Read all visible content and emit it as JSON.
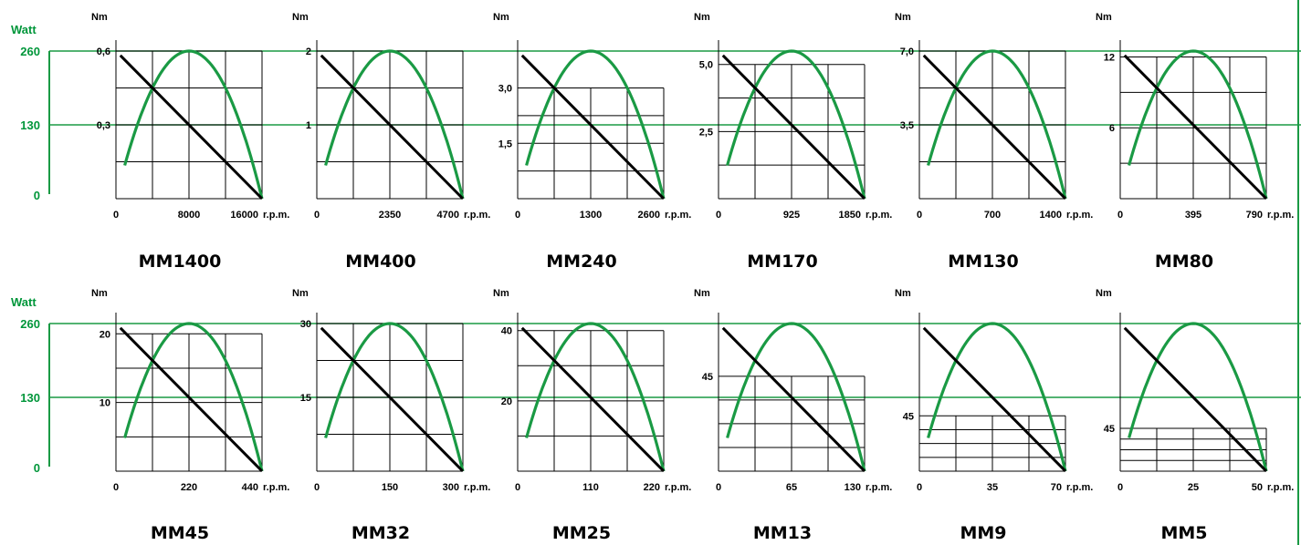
{
  "colors": {
    "power": "#1a9a44",
    "guide": "#1a9a44",
    "torque": "#000000",
    "grid": "#000000"
  },
  "power_axis": {
    "label": "Watt",
    "ticks": [
      "260",
      "130",
      "0"
    ],
    "values": [
      260,
      130,
      0
    ]
  },
  "rpm_unit": "r.p.m.",
  "torque_unit": "Nm",
  "chart_data": [
    {
      "type": "line",
      "model": "MM1400",
      "x_ticks": [
        "0",
        "8000",
        "16000"
      ],
      "x_max": 16000,
      "y_ticks": [
        "0,3",
        "0,6"
      ],
      "y_tick_values": [
        0.3,
        0.6
      ],
      "y_grid_max": 0.6,
      "y_max": 0.6,
      "power_max": 260,
      "series": [
        {
          "name": "Nm",
          "x": [
            0,
            16000
          ],
          "y": [
            0.6,
            0
          ]
        },
        {
          "name": "Watt",
          "x": [
            0,
            8000,
            16000
          ],
          "y": [
            0,
            260,
            0
          ]
        }
      ]
    },
    {
      "type": "line",
      "model": "MM400",
      "x_ticks": [
        "0",
        "2350",
        "4700"
      ],
      "x_max": 4700,
      "y_ticks": [
        "1",
        "2"
      ],
      "y_tick_values": [
        1,
        2
      ],
      "y_grid_max": 2,
      "y_max": 2,
      "power_max": 260,
      "series": [
        {
          "name": "Nm",
          "x": [
            0,
            4700
          ],
          "y": [
            2,
            0
          ]
        },
        {
          "name": "Watt",
          "x": [
            0,
            2350,
            4700
          ],
          "y": [
            0,
            260,
            0
          ]
        }
      ]
    },
    {
      "type": "line",
      "model": "MM240",
      "x_ticks": [
        "0",
        "1300",
        "2600"
      ],
      "x_max": 2600,
      "y_ticks": [
        "1,5",
        "3,0"
      ],
      "y_tick_values": [
        1.5,
        3.0
      ],
      "y_grid_max": 3.0,
      "y_max": 4.0,
      "power_max": 260,
      "series": [
        {
          "name": "Nm",
          "x": [
            0,
            2600
          ],
          "y": [
            4.0,
            0
          ]
        },
        {
          "name": "Watt",
          "x": [
            0,
            1300,
            2600
          ],
          "y": [
            0,
            260,
            0
          ]
        }
      ]
    },
    {
      "type": "line",
      "model": "MM170",
      "x_ticks": [
        "0",
        "925",
        "1850"
      ],
      "x_max": 1850,
      "y_ticks": [
        "2,5",
        "5,0"
      ],
      "y_tick_values": [
        2.5,
        5.0
      ],
      "y_grid_max": 5.0,
      "y_max": 5.5,
      "power_max": 260,
      "series": [
        {
          "name": "Nm",
          "x": [
            0,
            1850
          ],
          "y": [
            5.5,
            0
          ]
        },
        {
          "name": "Watt",
          "x": [
            0,
            925,
            1850
          ],
          "y": [
            0,
            260,
            0
          ]
        }
      ]
    },
    {
      "type": "line",
      "model": "MM130",
      "x_ticks": [
        "0",
        "700",
        "1400"
      ],
      "x_max": 1400,
      "y_ticks": [
        "3,5",
        "7,0"
      ],
      "y_tick_values": [
        3.5,
        7.0
      ],
      "y_grid_max": 7.0,
      "y_max": 7.0,
      "power_max": 260,
      "series": [
        {
          "name": "Nm",
          "x": [
            0,
            1400
          ],
          "y": [
            7.0,
            0
          ]
        },
        {
          "name": "Watt",
          "x": [
            0,
            700,
            1400
          ],
          "y": [
            0,
            260,
            0
          ]
        }
      ]
    },
    {
      "type": "line",
      "model": "MM80",
      "x_ticks": [
        "0",
        "395",
        "790"
      ],
      "x_max": 790,
      "y_ticks": [
        "6",
        "12"
      ],
      "y_tick_values": [
        6,
        12
      ],
      "y_grid_max": 12,
      "y_max": 12.5,
      "power_max": 260,
      "series": [
        {
          "name": "Nm",
          "x": [
            0,
            790
          ],
          "y": [
            12.5,
            0
          ]
        },
        {
          "name": "Watt",
          "x": [
            0,
            395,
            790
          ],
          "y": [
            0,
            260,
            0
          ]
        }
      ]
    },
    {
      "type": "line",
      "model": "MM45",
      "x_ticks": [
        "0",
        "220",
        "440"
      ],
      "x_max": 440,
      "y_ticks": [
        "10",
        "20"
      ],
      "y_tick_values": [
        10,
        20
      ],
      "y_grid_max": 20,
      "y_max": 21.5,
      "power_max": 260,
      "series": [
        {
          "name": "Nm",
          "x": [
            0,
            440
          ],
          "y": [
            21.5,
            0
          ]
        },
        {
          "name": "Watt",
          "x": [
            0,
            220,
            440
          ],
          "y": [
            0,
            260,
            0
          ]
        }
      ]
    },
    {
      "type": "line",
      "model": "MM32",
      "x_ticks": [
        "0",
        "150",
        "300"
      ],
      "x_max": 300,
      "y_ticks": [
        "15",
        "30"
      ],
      "y_tick_values": [
        15,
        30
      ],
      "y_grid_max": 30,
      "y_max": 30,
      "power_max": 260,
      "series": [
        {
          "name": "Nm",
          "x": [
            0,
            300
          ],
          "y": [
            30,
            0
          ]
        },
        {
          "name": "Watt",
          "x": [
            0,
            150,
            300
          ],
          "y": [
            0,
            260,
            0
          ]
        }
      ]
    },
    {
      "type": "line",
      "model": "MM25",
      "x_ticks": [
        "0",
        "110",
        "220"
      ],
      "x_max": 220,
      "y_ticks": [
        "20",
        "40"
      ],
      "y_tick_values": [
        20,
        40
      ],
      "y_grid_max": 40,
      "y_max": 42,
      "power_max": 260,
      "series": [
        {
          "name": "Nm",
          "x": [
            0,
            220
          ],
          "y": [
            42,
            0
          ]
        },
        {
          "name": "Watt",
          "x": [
            0,
            110,
            220
          ],
          "y": [
            0,
            260,
            0
          ]
        }
      ]
    },
    {
      "type": "line",
      "model": "MM13",
      "x_ticks": [
        "0",
        "65",
        "130"
      ],
      "x_max": 130,
      "y_ticks": [
        "45"
      ],
      "y_tick_values": [
        45
      ],
      "y_grid_max": 45,
      "y_max": 70,
      "power_max": 260,
      "series": [
        {
          "name": "Nm",
          "x": [
            0,
            130
          ],
          "y": [
            70,
            0
          ]
        },
        {
          "name": "Watt",
          "x": [
            0,
            65,
            130
          ],
          "y": [
            0,
            260,
            0
          ]
        }
      ]
    },
    {
      "type": "line",
      "model": "MM9",
      "x_ticks": [
        "0",
        "35",
        "70"
      ],
      "x_max": 70,
      "y_ticks": [
        "45"
      ],
      "y_tick_values": [
        45
      ],
      "y_grid_max": 45,
      "y_max": 120,
      "power_max": 260,
      "series": [
        {
          "name": "Nm",
          "x": [
            0,
            70
          ],
          "y": [
            120,
            0
          ]
        },
        {
          "name": "Watt",
          "x": [
            0,
            35,
            70
          ],
          "y": [
            0,
            260,
            0
          ]
        }
      ]
    },
    {
      "type": "line",
      "model": "MM5",
      "x_ticks": [
        "0",
        "25",
        "50"
      ],
      "x_max": 50,
      "y_ticks": [
        "45"
      ],
      "y_tick_values": [
        45
      ],
      "y_grid_max": 45,
      "y_max": 155,
      "power_max": 260,
      "series": [
        {
          "name": "Nm",
          "x": [
            0,
            50
          ],
          "y": [
            155,
            0
          ]
        },
        {
          "name": "Watt",
          "x": [
            0,
            25,
            50
          ],
          "y": [
            0,
            260,
            0
          ]
        }
      ]
    }
  ]
}
